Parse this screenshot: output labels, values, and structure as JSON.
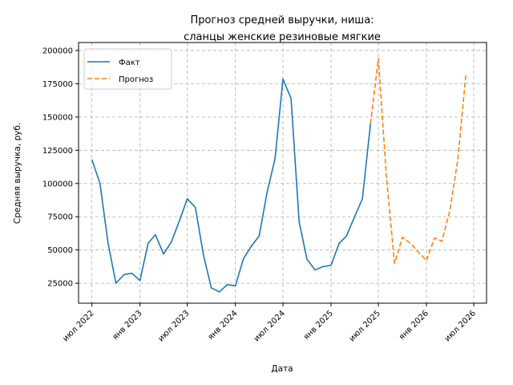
{
  "chart_data": {
    "type": "line",
    "title": [
      "Прогноз средней выручки, ниша:",
      "сланцы женские резиновые мягкие"
    ],
    "xlabel": "Дата",
    "ylabel": "Средняя выручка, руб.",
    "ylim": [
      10000,
      206000
    ],
    "xlim": [
      "2022-05-11",
      "2026-08-19"
    ],
    "y_ticks": [
      25000,
      50000,
      75000,
      100000,
      125000,
      150000,
      175000,
      200000
    ],
    "x_ticks": [
      {
        "date": "2022-07-01",
        "label": "июл 2022"
      },
      {
        "date": "2023-01-01",
        "label": "янв 2023"
      },
      {
        "date": "2023-07-01",
        "label": "июл 2023"
      },
      {
        "date": "2024-01-01",
        "label": "янв 2024"
      },
      {
        "date": "2024-07-01",
        "label": "июл 2024"
      },
      {
        "date": "2025-01-01",
        "label": "янв 2025"
      },
      {
        "date": "2025-07-01",
        "label": "июл 2025"
      },
      {
        "date": "2026-01-01",
        "label": "янв 2026"
      },
      {
        "date": "2026-07-01",
        "label": "июл 2026"
      }
    ],
    "grid": true,
    "legend_position": "top-left",
    "series": [
      {
        "name": "Факт",
        "style": "solid",
        "color": "#1f77b4",
        "points": [
          [
            "2022-07-01",
            118000
          ],
          [
            "2022-08-01",
            100000
          ],
          [
            "2022-09-01",
            55000
          ],
          [
            "2022-10-01",
            25000
          ],
          [
            "2022-11-01",
            31500
          ],
          [
            "2022-12-01",
            32500
          ],
          [
            "2023-01-01",
            27000
          ],
          [
            "2023-02-01",
            55000
          ],
          [
            "2023-03-01",
            61500
          ],
          [
            "2023-04-01",
            47000
          ],
          [
            "2023-05-01",
            56000
          ],
          [
            "2023-06-01",
            72000
          ],
          [
            "2023-07-01",
            88500
          ],
          [
            "2023-08-01",
            82000
          ],
          [
            "2023-09-01",
            46000
          ],
          [
            "2023-10-01",
            21500
          ],
          [
            "2023-11-01",
            18500
          ],
          [
            "2023-12-01",
            24000
          ],
          [
            "2024-01-01",
            23000
          ],
          [
            "2024-02-01",
            43500
          ],
          [
            "2024-03-01",
            52500
          ],
          [
            "2024-04-01",
            60500
          ],
          [
            "2024-05-01",
            93000
          ],
          [
            "2024-06-01",
            119000
          ],
          [
            "2024-07-01",
            178500
          ],
          [
            "2024-08-01",
            164000
          ],
          [
            "2024-09-01",
            71000
          ],
          [
            "2024-10-01",
            43000
          ],
          [
            "2024-11-01",
            35000
          ],
          [
            "2024-12-01",
            37500
          ],
          [
            "2025-01-01",
            38500
          ],
          [
            "2025-02-01",
            55000
          ],
          [
            "2025-03-01",
            60500
          ],
          [
            "2025-04-01",
            75000
          ],
          [
            "2025-05-01",
            88500
          ],
          [
            "2025-06-01",
            145000
          ]
        ]
      },
      {
        "name": "Прогноз",
        "style": "dashed",
        "color": "#ff7f0e",
        "points": [
          [
            "2025-06-01",
            145000
          ],
          [
            "2025-07-01",
            194000
          ],
          [
            "2025-08-01",
            105000
          ],
          [
            "2025-09-01",
            40000
          ],
          [
            "2025-10-01",
            59500
          ],
          [
            "2025-11-01",
            55000
          ],
          [
            "2025-12-01",
            48500
          ],
          [
            "2026-01-01",
            42000
          ],
          [
            "2026-02-01",
            59000
          ],
          [
            "2026-03-01",
            56500
          ],
          [
            "2026-04-01",
            80000
          ],
          [
            "2026-05-01",
            118000
          ],
          [
            "2026-06-01",
            182000
          ]
        ]
      }
    ]
  }
}
